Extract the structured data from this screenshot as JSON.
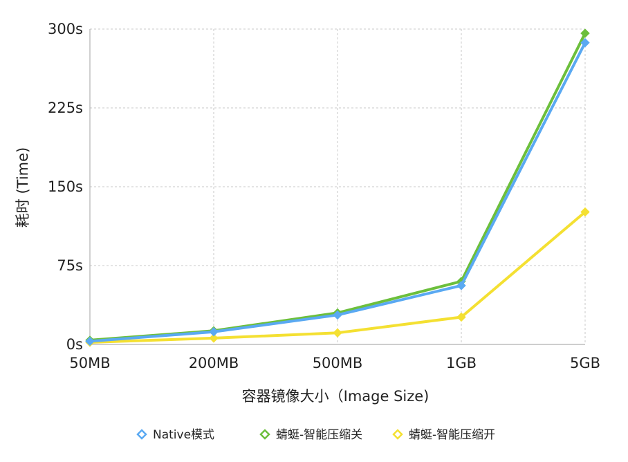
{
  "chart_data": {
    "type": "line",
    "title": "",
    "xlabel": "容器镜像大小（Image Size)",
    "ylabel": "耗时 (Time)",
    "categories": [
      "50MB",
      "200MB",
      "500MB",
      "1GB",
      "5GB"
    ],
    "y_ticks": [
      {
        "value": 0,
        "label": "0s"
      },
      {
        "value": 75,
        "label": "75s"
      },
      {
        "value": 150,
        "label": "150s"
      },
      {
        "value": 225,
        "label": "225s"
      },
      {
        "value": 300,
        "label": "300s"
      }
    ],
    "ylim": [
      0,
      300
    ],
    "grid": true,
    "legend_position": "bottom",
    "series": [
      {
        "name": "Native模式",
        "color": "#5aa9f2",
        "values": [
          3,
          12,
          28,
          56,
          287
        ]
      },
      {
        "name": "蜻蜓-智能压缩关",
        "color": "#6cbf3c",
        "values": [
          4,
          13,
          30,
          60,
          296
        ]
      },
      {
        "name": "蜻蜓-智能压缩开",
        "color": "#f4e032",
        "values": [
          2,
          6,
          11,
          26,
          126
        ]
      }
    ]
  }
}
